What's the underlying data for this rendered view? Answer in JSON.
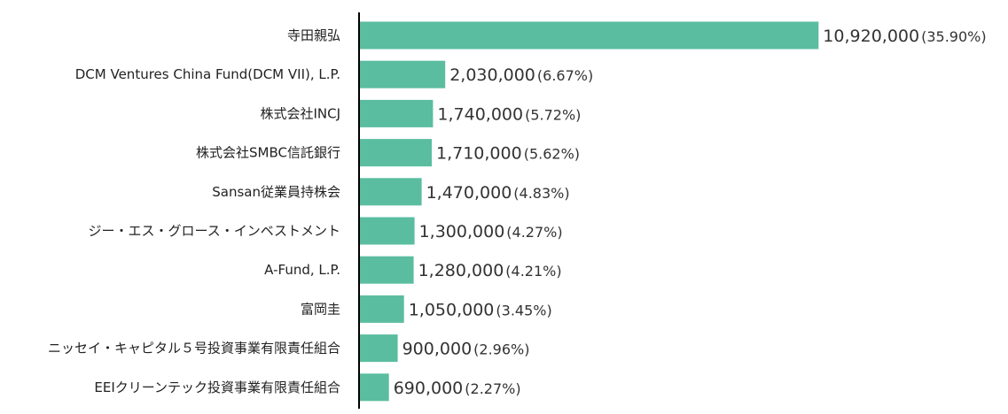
{
  "chart_data": {
    "type": "bar",
    "orientation": "horizontal",
    "bar_color": "#5abda0",
    "axis_color": "#000000",
    "grid": false,
    "legend": "none",
    "xlim": [
      0,
      11400000
    ],
    "categories": [
      "寺田親弘",
      "DCM Ventures China Fund(DCM VII), L.P.",
      "株式会社INCJ",
      "株式会社SMBC信託銀行",
      "Sansan従業員持株会",
      "ジー・エス・グロース・インベストメント",
      "A-Fund, L.P.",
      "富岡圭",
      "ニッセイ・キャピタル５号投資事業有限責任組合",
      "EEIクリーンテック投資事業有限責任組合"
    ],
    "values": [
      10920000,
      2030000,
      1740000,
      1710000,
      1470000,
      1300000,
      1280000,
      1050000,
      900000,
      690000
    ],
    "value_labels": [
      "10,920,000",
      "2,030,000",
      "1,740,000",
      "1,710,000",
      "1,470,000",
      "1,300,000",
      "1,280,000",
      "1,050,000",
      "900,000",
      "690,000"
    ],
    "percent_labels": [
      "(35.90%)",
      "(6.67%)",
      "(5.72%)",
      "(5.62%)",
      "(4.83%)",
      "(4.27%)",
      "(4.21%)",
      "(3.45%)",
      "(2.96%)",
      "(2.27%)"
    ]
  }
}
